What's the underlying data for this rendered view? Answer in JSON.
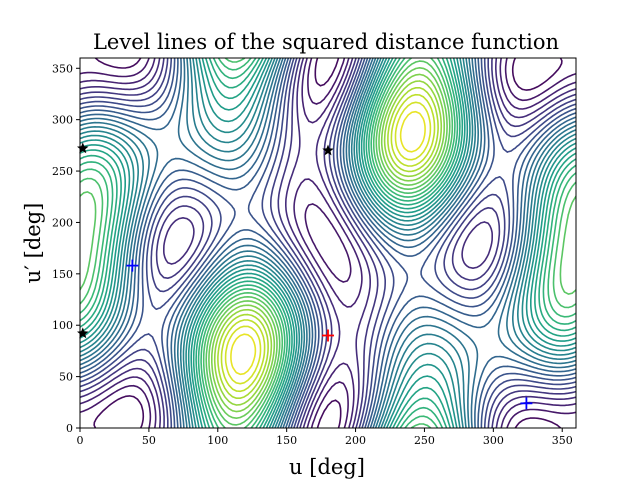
{
  "chart_data": {
    "type": "contour",
    "title": "Level lines of the squared distance function",
    "xlabel": "u [deg]",
    "ylabel": "u′ [deg]",
    "xlim": [
      0,
      360
    ],
    "ylim": [
      0,
      360
    ],
    "x_ticks": [
      0,
      50,
      100,
      150,
      200,
      250,
      300,
      350
    ],
    "y_ticks": [
      0,
      50,
      100,
      150,
      200,
      250,
      300,
      350
    ],
    "colormap": "viridis",
    "grid": false,
    "markers": [
      {
        "kind": "plus",
        "color": "#ff0000",
        "x": 180,
        "y": 90
      },
      {
        "kind": "plus",
        "color": "#0000ff",
        "x": 38,
        "y": 158
      },
      {
        "kind": "plus",
        "color": "#0000ff",
        "x": 324,
        "y": 24
      },
      {
        "kind": "star",
        "color": "#000000",
        "x": 180,
        "y": 270
      },
      {
        "kind": "star",
        "color": "#000000",
        "x": 2,
        "y": 272
      },
      {
        "kind": "star",
        "color": "#000000",
        "x": 2,
        "y": 92
      }
    ]
  }
}
